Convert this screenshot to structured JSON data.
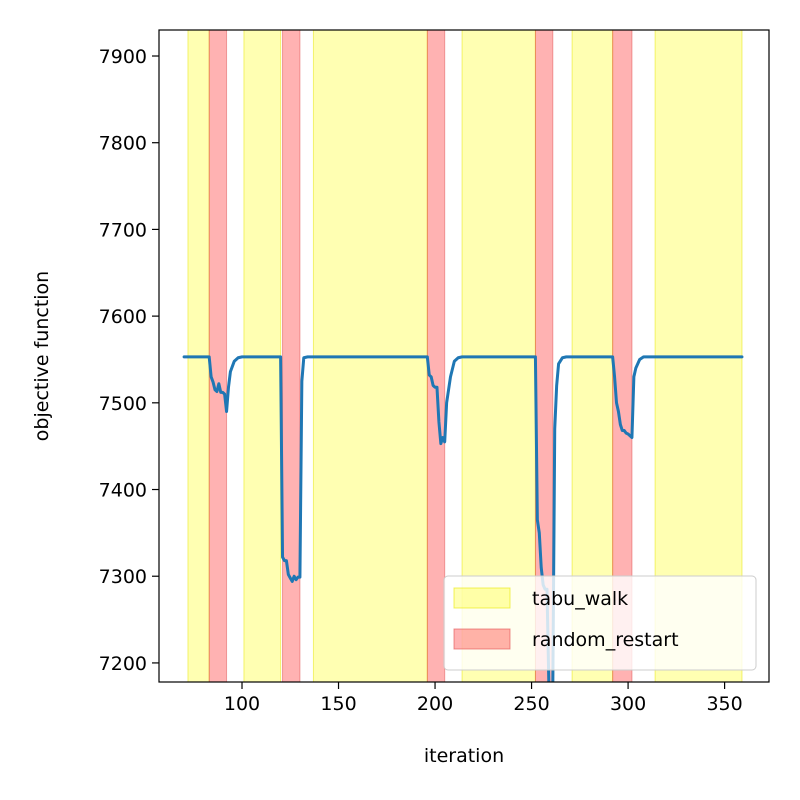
{
  "chart_data": {
    "type": "line",
    "title": "",
    "xlabel": "iteration",
    "ylabel": "objective function",
    "xlim": [
      57,
      373
    ],
    "ylim": [
      7178,
      7930
    ],
    "xticks": [
      100,
      150,
      200,
      250,
      300,
      350
    ],
    "yticks": [
      7200,
      7300,
      7400,
      7500,
      7600,
      7700,
      7800,
      7900
    ],
    "grid": false,
    "legend_position": "lower-right",
    "colors": {
      "line": "#1f77b4",
      "tabu_walk": "#ffff00",
      "random_restart": "#ff0000",
      "tabu_walk_edge": "#e6e600",
      "random_restart_edge": "#e05050"
    },
    "regions": {
      "tabu_walk": [
        [
          72,
          83
        ],
        [
          101,
          120
        ],
        [
          137,
          196
        ],
        [
          214,
          252
        ],
        [
          271,
          292
        ],
        [
          314,
          359
        ]
      ],
      "random_restart": [
        [
          83,
          92
        ],
        [
          121,
          130
        ],
        [
          196,
          205
        ],
        [
          252,
          261
        ],
        [
          292,
          302
        ]
      ]
    },
    "legend": [
      {
        "key": "tabu_walk",
        "label": "tabu_walk"
      },
      {
        "key": "random_restart",
        "label": "random_restart"
      }
    ],
    "series": [
      {
        "x": [
          70,
          83,
          84,
          85,
          86,
          87,
          88,
          89,
          90,
          91,
          92,
          93,
          94,
          96,
          98,
          100,
          120,
          121,
          122,
          123,
          124,
          125,
          126,
          127,
          128,
          129,
          130,
          131,
          132,
          134,
          136,
          196,
          197,
          198,
          199,
          200,
          201,
          202,
          203,
          204,
          205,
          206,
          208,
          210,
          212,
          214,
          252,
          253,
          254,
          255,
          256,
          257,
          258,
          259,
          260,
          261,
          262,
          263,
          264,
          266,
          268,
          270,
          292,
          293,
          294,
          295,
          296,
          297,
          298,
          299,
          300,
          301,
          302,
          303,
          304,
          306,
          308,
          310,
          359
        ],
        "y": [
          7553,
          7553,
          7530,
          7524,
          7515,
          7513,
          7522,
          7512,
          7512,
          7510,
          7490,
          7518,
          7536,
          7548,
          7552,
          7553,
          7553,
          7322,
          7318,
          7318,
          7302,
          7298,
          7294,
          7300,
          7296,
          7299,
          7299,
          7525,
          7552,
          7553,
          7553,
          7553,
          7532,
          7530,
          7520,
          7518,
          7518,
          7478,
          7453,
          7460,
          7455,
          7500,
          7530,
          7548,
          7552,
          7553,
          7553,
          7365,
          7350,
          7310,
          7290,
          7285,
          7285,
          7170,
          7170,
          7170,
          7470,
          7520,
          7545,
          7552,
          7553,
          7553,
          7553,
          7530,
          7500,
          7490,
          7475,
          7468,
          7468,
          7465,
          7464,
          7462,
          7460,
          7530,
          7540,
          7550,
          7553,
          7553,
          7553
        ]
      }
    ]
  }
}
